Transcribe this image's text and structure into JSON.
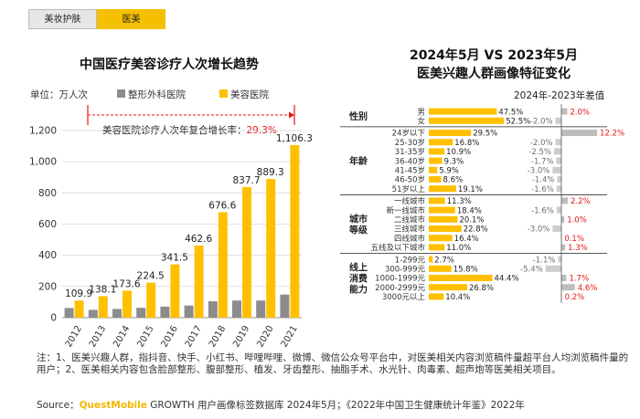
{
  "tabs": [
    {
      "label": "美妆护肤",
      "active": false
    },
    {
      "label": "医美",
      "active": true
    }
  ],
  "left_chart": {
    "title": "中国医疗美容诊疗人次增长趋势",
    "unit_label": "单位：万人次",
    "legend": [
      "整形外科医院",
      "美容医院"
    ],
    "cagr_label": "美容医院诊疗人次年复合增长率：",
    "cagr_value": "29.3%"
  },
  "right_chart": {
    "title_line1": "2024年5月 VS 2023年5月",
    "title_line2": "医美兴趣人群画像特征变化",
    "diff_header": "2024年-2023年差值"
  },
  "footnote": "注：1、医美兴趣人群，指抖音、快手、小红书、哔哩哔哩、微博、微信公众号平台中，对医美相关内容浏览稿件量超平台人均浏览稿件量的用户；2、医美相关内容包含脸部整形、腹部整形、植发、牙齿整形、抽脂手术、水光针、肉毒素、超声炮等医美相关项目。",
  "source": {
    "prefix": "Source：",
    "brand": "QuestMobile",
    "rest": " GROWTH 用户画像标签数据库 2024年5月；《2022年中国卫生健康统计年鉴》2022年"
  },
  "colors": {
    "gray_bar": "#8c8c8c",
    "yellow_bar": "#ffc000",
    "positive_diff": "#e81414",
    "negative_diff": "#6e6e6e"
  },
  "chart_data": [
    {
      "type": "bar",
      "categories": [
        "2012",
        "2013",
        "2014",
        "2015",
        "2016",
        "2017",
        "2018",
        "2019",
        "2020",
        "2021"
      ],
      "series": [
        {
          "name": "整形外科医院",
          "values": [
            62,
            50,
            56,
            63,
            71,
            78,
            105,
            110,
            110,
            148
          ]
        },
        {
          "name": "美容医院",
          "values": [
            109.9,
            138.1,
            173.6,
            224.5,
            341.5,
            462.6,
            676.6,
            837.7,
            889.3,
            1106.3
          ]
        }
      ],
      "data_labels": [
        "109.9",
        "138.1",
        "173.6",
        "224.5",
        "341.5",
        "462.6",
        "676.6",
        "837.7",
        "889.3",
        "1,106.3"
      ],
      "yticks": [
        "0",
        "200",
        "400",
        "600",
        "800",
        "1,000",
        "1,200"
      ],
      "ylim": [
        0,
        1200
      ]
    },
    {
      "type": "bar",
      "groups": [
        {
          "label": "性别",
          "rows": [
            {
              "category": "男",
              "share": 47.5,
              "share_label": "47.5%",
              "diff": 2.0,
              "diff_label": "2.0%"
            },
            {
              "category": "女",
              "share": 52.5,
              "share_label": "52.5%",
              "diff": -2.0,
              "diff_label": "-2.0%"
            }
          ]
        },
        {
          "label": "年龄",
          "rows": [
            {
              "category": "24岁以下",
              "share": 29.5,
              "share_label": "29.5%",
              "diff": 12.2,
              "diff_label": "12.2%"
            },
            {
              "category": "25-30岁",
              "share": 16.8,
              "share_label": "16.8%",
              "diff": -2.0,
              "diff_label": "-2.0%"
            },
            {
              "category": "31-35岁",
              "share": 10.9,
              "share_label": "10.9%",
              "diff": -2.5,
              "diff_label": "-2.5%"
            },
            {
              "category": "36-40岁",
              "share": 9.3,
              "share_label": "9.3%",
              "diff": -1.7,
              "diff_label": "-1.7%"
            },
            {
              "category": "41-45岁",
              "share": 5.9,
              "share_label": "5.9%",
              "diff": -3.0,
              "diff_label": "-3.0%"
            },
            {
              "category": "46-50岁",
              "share": 8.6,
              "share_label": "8.6%",
              "diff": -1.4,
              "diff_label": "-1.4%"
            },
            {
              "category": "51岁以上",
              "share": 19.1,
              "share_label": "19.1%",
              "diff": -1.6,
              "diff_label": "-1.6%"
            }
          ]
        },
        {
          "label": "城市\n等级",
          "rows": [
            {
              "category": "一线城市",
              "share": 11.3,
              "share_label": "11.3%",
              "diff": 2.2,
              "diff_label": "2.2%"
            },
            {
              "category": "新一线城市",
              "share": 18.4,
              "share_label": "18.4%",
              "diff": -1.6,
              "diff_label": "-1.6%"
            },
            {
              "category": "二线城市",
              "share": 20.1,
              "share_label": "20.1%",
              "diff": 1.0,
              "diff_label": "1.0%"
            },
            {
              "category": "三线城市",
              "share": 22.8,
              "share_label": "22.8%",
              "diff": -3.0,
              "diff_label": "-3.0%"
            },
            {
              "category": "四线城市",
              "share": 16.4,
              "share_label": "16.4%",
              "diff": 0.1,
              "diff_label": "0.1%"
            },
            {
              "category": "五线及以下城市",
              "share": 11.0,
              "share_label": "11.0%",
              "diff": 1.3,
              "diff_label": "1.3%"
            }
          ]
        },
        {
          "label": "线上\n消费\n能力",
          "rows": [
            {
              "category": "1-299元",
              "share": 2.7,
              "share_label": "2.7%",
              "diff": -1.1,
              "diff_label": "-1.1%"
            },
            {
              "category": "300-999元",
              "share": 15.8,
              "share_label": "15.8%",
              "diff": -5.4,
              "diff_label": "-5.4%"
            },
            {
              "category": "1000-1999元",
              "share": 44.4,
              "share_label": "44.4%",
              "diff": 1.7,
              "diff_label": "1.7%"
            },
            {
              "category": "2000-2999元",
              "share": 26.8,
              "share_label": "26.8%",
              "diff": 4.6,
              "diff_label": "4.6%"
            },
            {
              "category": "3000元以上",
              "share": 10.4,
              "share_label": "10.4%",
              "diff": 0.2,
              "diff_label": "0.2%"
            }
          ]
        }
      ]
    }
  ]
}
